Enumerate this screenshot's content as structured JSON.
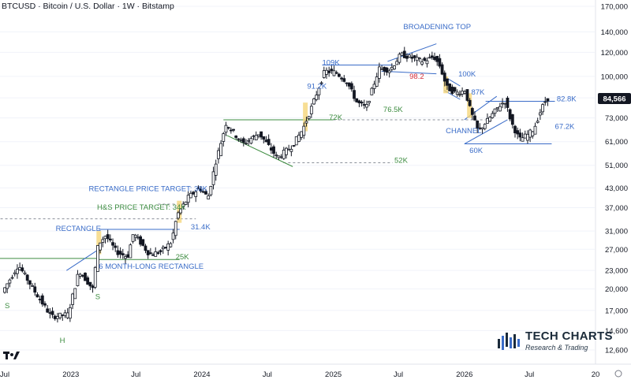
{
  "header": {
    "title": "BTCUSD · Bitcoin / U.S. Dollar · 1W · Bitstamp"
  },
  "colors": {
    "up": "#131722",
    "down": "#131722",
    "blue": "#3a6cc8",
    "green": "#3d8c40",
    "red": "#d62f3a",
    "highlight": "#f5d67a",
    "axis_text": "#131722",
    "grid": "#f0f3fa",
    "price_tag_bg": "#131722",
    "price_tag_text": "#ffffff"
  },
  "branding": {
    "name": "TECH CHARTS",
    "tagline": "Research & Trading"
  },
  "chart_data": {
    "type": "candlestick",
    "symbol": "BTCUSD",
    "interval": "1W",
    "exchange": "Bitstamp",
    "y_scale": "log",
    "y_ticks": [
      12600,
      14600,
      17000,
      20000,
      23000,
      27000,
      31000,
      37000,
      43000,
      51000,
      61000,
      73000,
      85000,
      100000,
      120000,
      140000,
      170000
    ],
    "y_tick_labels": [
      "12,600",
      "14,600",
      "17,000",
      "20,000",
      "23,000",
      "27,000",
      "31,000",
      "37,000",
      "43,000",
      "51,000",
      "61,000",
      "73,000",
      "85,000",
      "100,000",
      "120,000",
      "140,000",
      "170,000"
    ],
    "x_ticks": [
      {
        "label": "Jul",
        "date": "2022-07-01"
      },
      {
        "label": "2023",
        "date": "2023-01-01"
      },
      {
        "label": "Jul",
        "date": "2023-07-01"
      },
      {
        "label": "2024",
        "date": "2024-01-01"
      },
      {
        "label": "Jul",
        "date": "2024-07-01"
      },
      {
        "label": "2025",
        "date": "2025-01-01"
      },
      {
        "label": "Jul",
        "date": "2025-07-01"
      },
      {
        "label": "2026",
        "date": "2026-01-01"
      },
      {
        "label": "Jul",
        "date": "2026-07-01"
      },
      {
        "label": "20",
        "date": "2027-01-01"
      }
    ],
    "last_price": {
      "value": 84566,
      "label": "84,566"
    },
    "ohlc_points": [
      [
        "2022-07-01",
        19500
      ],
      [
        "2022-08-15",
        24000
      ],
      [
        "2022-10-01",
        19500
      ],
      [
        "2022-11-15",
        16200
      ],
      [
        "2022-12-31",
        16500
      ],
      [
        "2023-01-31",
        23000
      ],
      [
        "2023-03-10",
        20000
      ],
      [
        "2023-03-25",
        28000
      ],
      [
        "2023-04-15",
        30000
      ],
      [
        "2023-05-15",
        26500
      ],
      [
        "2023-06-15",
        25500
      ],
      [
        "2023-07-01",
        30500
      ],
      [
        "2023-08-15",
        26000
      ],
      [
        "2023-09-15",
        26500
      ],
      [
        "2023-10-15",
        28500
      ],
      [
        "2023-10-31",
        35000
      ],
      [
        "2023-12-01",
        40000
      ],
      [
        "2024-01-01",
        43000
      ],
      [
        "2024-01-25",
        40000
      ],
      [
        "2024-02-15",
        52000
      ],
      [
        "2024-03-15",
        70000
      ],
      [
        "2024-05-01",
        60000
      ],
      [
        "2024-06-15",
        65000
      ],
      [
        "2024-08-05",
        54000
      ],
      [
        "2024-09-15",
        59000
      ],
      [
        "2024-10-15",
        67000
      ],
      [
        "2024-11-10",
        80000
      ],
      [
        "2024-12-15",
        104000
      ],
      [
        "2025-01-15",
        103000
      ],
      [
        "2025-02-15",
        96000
      ],
      [
        "2025-03-15",
        82000
      ],
      [
        "2025-04-10",
        79000
      ],
      [
        "2025-05-15",
        106000
      ],
      [
        "2025-06-15",
        105000
      ],
      [
        "2025-07-15",
        118000
      ],
      [
        "2025-08-15",
        115000
      ],
      [
        "2025-09-15",
        112000
      ],
      [
        "2025-10-15",
        116000
      ],
      [
        "2025-11-01",
        108000
      ],
      [
        "2025-11-20",
        92000
      ],
      [
        "2025-12-15",
        88000
      ],
      [
        "2026-01-10",
        90000
      ],
      [
        "2026-01-25",
        77000
      ],
      [
        "2026-02-15",
        66000
      ],
      [
        "2026-03-15",
        72000
      ],
      [
        "2026-04-15",
        80000
      ],
      [
        "2026-05-01",
        83000
      ],
      [
        "2026-05-20",
        70000
      ],
      [
        "2026-06-10",
        62000
      ],
      [
        "2026-07-01",
        64000
      ],
      [
        "2026-07-20",
        67000
      ],
      [
        "2026-08-10",
        78000
      ],
      [
        "2026-08-25",
        84566
      ]
    ],
    "annotations": [
      {
        "text": "BROADENING TOP",
        "color": "blue",
        "date": "2025-07-15",
        "price": 143000
      },
      {
        "text": "109K",
        "color": "blue",
        "date": "2024-12-01",
        "price": 109000
      },
      {
        "text": "98.2",
        "color": "red",
        "date": "2025-08-01",
        "price": 98200
      },
      {
        "text": "100K",
        "color": "blue",
        "date": "2025-12-15",
        "price": 100000
      },
      {
        "text": "91.2K",
        "color": "blue",
        "date": "2024-10-20",
        "price": 91200
      },
      {
        "text": "87K",
        "color": "blue",
        "date": "2026-01-20",
        "price": 87000
      },
      {
        "text": "82.8K",
        "color": "blue",
        "date": "2026-09-15",
        "price": 82800
      },
      {
        "text": "72K",
        "color": "green",
        "date": "2024-12-20",
        "price": 72000
      },
      {
        "text": "76.5K",
        "color": "green",
        "date": "2025-05-20",
        "price": 76500
      },
      {
        "text": "67.2K",
        "color": "blue",
        "date": "2026-09-10",
        "price": 67200
      },
      {
        "text": "CHANNEL",
        "color": "blue",
        "date": "2025-11-10",
        "price": 65000
      },
      {
        "text": "60K",
        "color": "blue",
        "date": "2026-01-15",
        "price": 56000
      },
      {
        "text": "52K",
        "color": "green",
        "date": "2025-06-20",
        "price": 52000
      },
      {
        "text": "RECTANGLE PRICE TARGET: 38K",
        "color": "blue",
        "date": "2023-02-20",
        "price": 42000
      },
      {
        "text": "H&S PRICE TARGET: 34K",
        "color": "green",
        "date": "2023-03-15",
        "price": 36500
      },
      {
        "text": "RECTANGLE",
        "color": "blue",
        "date": "2022-11-20",
        "price": 31000
      },
      {
        "text": "31.4K",
        "color": "blue",
        "date": "2023-12-01",
        "price": 31400
      },
      {
        "text": "25K",
        "color": "green",
        "date": "2023-10-20",
        "price": 25000
      },
      {
        "text": "6 MONTH-LONG RECTANGLE",
        "color": "blue",
        "date": "2023-03-20",
        "price": 23300
      },
      {
        "text": "S",
        "color": "green",
        "date": "2022-07-01",
        "price": 17300
      },
      {
        "text": "H",
        "color": "green",
        "date": "2022-12-01",
        "price": 13300
      },
      {
        "text": "S",
        "color": "green",
        "date": "2023-03-10",
        "price": 18500
      }
    ],
    "levels": [
      {
        "name": "109K",
        "price": 109000,
        "from": "2024-12-01",
        "to": "2025-06-15",
        "color": "blue",
        "style": "solid"
      },
      {
        "name": "72K",
        "price": 72000,
        "from": "2024-03-01",
        "to": "2025-01-01",
        "color": "green",
        "style": "solid"
      },
      {
        "name": "72K-extension",
        "price": 72000,
        "from": "2025-01-01",
        "to": "2026-03-01",
        "color": "gray",
        "style": "dashed"
      },
      {
        "name": "52K",
        "price": 52000,
        "from": "2024-08-15",
        "to": "2025-06-15",
        "color": "gray",
        "style": "dashed"
      },
      {
        "name": "82.8K",
        "price": 82800,
        "from": "2026-03-01",
        "to": "2026-09-10",
        "color": "blue",
        "style": "solid"
      },
      {
        "name": "60K",
        "price": 60000,
        "from": "2026-01-01",
        "to": "2026-09-01",
        "color": "blue",
        "style": "solid"
      },
      {
        "name": "31.4K",
        "price": 31400,
        "from": "2023-03-20",
        "to": "2023-10-31",
        "color": "blue",
        "style": "solid"
      },
      {
        "name": "25K",
        "price": 25000,
        "from": "2023-03-20",
        "to": "2023-10-31",
        "color": "green",
        "style": "solid"
      },
      {
        "name": "neckline",
        "price": 25200,
        "from": "2022-04-01",
        "to": "2023-03-15",
        "color": "green",
        "style": "solid"
      },
      {
        "name": "rectangle-top",
        "price": 34000,
        "from": "2022-04-01",
        "to": "2023-12-15",
        "color": "gray",
        "style": "dashed"
      },
      {
        "name": "rectangle-target",
        "price": 38000,
        "from": "2023-09-01",
        "to": "2023-12-01",
        "color": "gray",
        "style": "dashed"
      }
    ]
  }
}
